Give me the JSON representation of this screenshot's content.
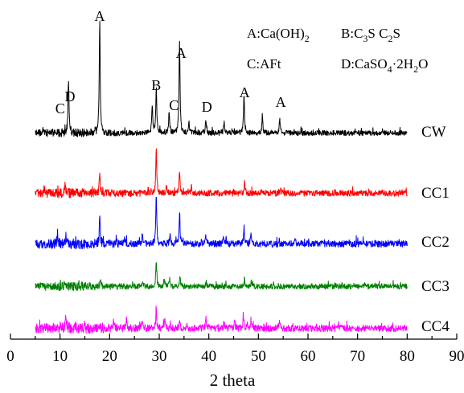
{
  "chart_data": {
    "type": "line",
    "title": "",
    "xlabel": "2 theta",
    "ylabel": "",
    "xlim": [
      0,
      90
    ],
    "x_ticks": [
      0,
      10,
      20,
      30,
      40,
      50,
      60,
      70,
      80,
      90
    ],
    "x_range_data": [
      5,
      80
    ],
    "grid": false,
    "legend": {
      "placement": "top-right",
      "entries": [
        {
          "letter": "A",
          "formula": [
            [
              "Ca(OH)",
              ""
            ],
            [
              "2",
              "sub"
            ]
          ]
        },
        {
          "letter": "B",
          "formula": [
            [
              "C",
              ""
            ],
            [
              "3",
              "sub"
            ],
            [
              "S  C",
              ""
            ],
            [
              "2",
              "sub"
            ],
            [
              "S",
              ""
            ]
          ]
        },
        {
          "letter": "C",
          "formula": [
            [
              "AFt",
              ""
            ]
          ]
        },
        {
          "letter": "D",
          "formula": [
            [
              "CaSO",
              ""
            ],
            [
              "4",
              "sub"
            ],
            [
              "·2H",
              ""
            ],
            [
              "2",
              "sub"
            ],
            [
              "O",
              ""
            ]
          ]
        }
      ]
    },
    "series": [
      {
        "name": "CW",
        "color": "#000000",
        "seed": 11,
        "noise": 1.0,
        "peaks": [
          [
            11.7,
            0.5
          ],
          [
            18.0,
            1.0
          ],
          [
            28.6,
            0.25
          ],
          [
            29.4,
            0.42
          ],
          [
            32.0,
            0.2
          ],
          [
            34.1,
            0.82
          ],
          [
            36.0,
            0.1
          ],
          [
            39.4,
            0.12
          ],
          [
            43.1,
            0.1
          ],
          [
            47.1,
            0.34
          ],
          [
            50.8,
            0.16
          ],
          [
            54.3,
            0.14
          ]
        ]
      },
      {
        "name": "CC1",
        "color": "#ff0000",
        "seed": 23,
        "noise": 1.15,
        "peaks": [
          [
            11.0,
            0.16
          ],
          [
            18.0,
            0.42
          ],
          [
            29.4,
            0.98
          ],
          [
            31.5,
            0.18
          ],
          [
            34.1,
            0.48
          ],
          [
            36.5,
            0.14
          ],
          [
            47.2,
            0.24
          ],
          [
            50.6,
            0.12
          ],
          [
            54.5,
            0.1
          ]
        ]
      },
      {
        "name": "CC2",
        "color": "#0000ff",
        "seed": 37,
        "noise": 1.25,
        "peaks": [
          [
            9.5,
            0.18
          ],
          [
            11.2,
            0.2
          ],
          [
            18.0,
            0.46
          ],
          [
            23.0,
            0.15
          ],
          [
            26.6,
            0.18
          ],
          [
            29.4,
            0.9
          ],
          [
            32.2,
            0.2
          ],
          [
            34.1,
            0.55
          ],
          [
            39.4,
            0.14
          ],
          [
            43.0,
            0.12
          ],
          [
            47.1,
            0.26
          ],
          [
            48.5,
            0.18
          ],
          [
            57.3,
            0.12
          ]
        ]
      },
      {
        "name": "CC3",
        "color": "#008000",
        "seed": 53,
        "noise": 1.05,
        "peaks": [
          [
            11.0,
            0.13
          ],
          [
            18.1,
            0.18
          ],
          [
            26.6,
            0.15
          ],
          [
            29.4,
            0.62
          ],
          [
            31.0,
            0.2
          ],
          [
            32.1,
            0.2
          ],
          [
            34.2,
            0.22
          ],
          [
            39.5,
            0.13
          ],
          [
            47.2,
            0.18
          ],
          [
            48.6,
            0.13
          ]
        ]
      },
      {
        "name": "CC4",
        "color": "#ff00ff",
        "seed": 71,
        "noise": 1.3,
        "peaks": [
          [
            11.2,
            0.3
          ],
          [
            20.8,
            0.18
          ],
          [
            23.4,
            0.2
          ],
          [
            26.5,
            0.18
          ],
          [
            29.4,
            0.42
          ],
          [
            31.1,
            0.24
          ],
          [
            34.1,
            0.2
          ],
          [
            39.4,
            0.25
          ],
          [
            45.2,
            0.18
          ],
          [
            47.0,
            0.28
          ],
          [
            48.5,
            0.22
          ],
          [
            54.2,
            0.16
          ]
        ]
      }
    ],
    "peak_labels": [
      {
        "text": "A",
        "x": 18.0,
        "series": "CW"
      },
      {
        "text": "A",
        "x": 34.1,
        "series": "CW"
      },
      {
        "text": "B",
        "x": 29.4,
        "series": "CW"
      },
      {
        "text": "C",
        "x": 32.3,
        "series": "CW"
      },
      {
        "text": "C",
        "x": 10.0,
        "series": "CW"
      },
      {
        "text": "D",
        "x": 12.0,
        "series": "CW"
      },
      {
        "text": "D",
        "x": 39.6,
        "series": "CW"
      },
      {
        "text": "A",
        "x": 47.2,
        "series": "CW"
      },
      {
        "text": "A",
        "x": 54.5,
        "series": "CW"
      }
    ]
  }
}
